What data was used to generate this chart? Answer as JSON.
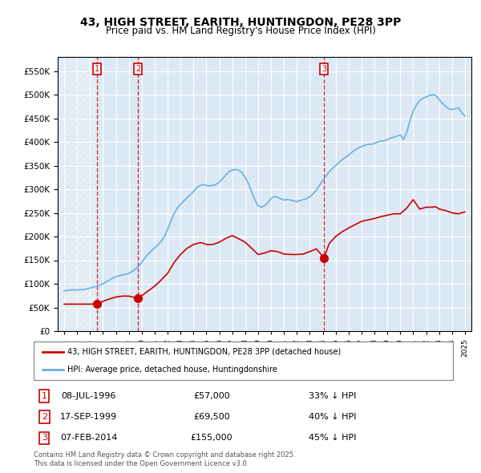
{
  "title": "43, HIGH STREET, EARITH, HUNTINGDON, PE28 3PP",
  "subtitle": "Price paid vs. HM Land Registry's House Price Index (HPI)",
  "legend_red": "43, HIGH STREET, EARITH, HUNTINGDON, PE28 3PP (detached house)",
  "legend_blue": "HPI: Average price, detached house, Huntingdonshire",
  "footnote": "Contains HM Land Registry data © Crown copyright and database right 2025.\nThis data is licensed under the Open Government Licence v3.0.",
  "sales": [
    {
      "num": 1,
      "date": "08-JUL-1996",
      "price": 57000,
      "year": 1996.52,
      "label": "33% ↓ HPI"
    },
    {
      "num": 2,
      "date": "17-SEP-1999",
      "price": 69500,
      "year": 1999.71,
      "label": "40% ↓ HPI"
    },
    {
      "num": 3,
      "date": "07-FEB-2014",
      "price": 155000,
      "year": 2014.1,
      "label": "45% ↓ HPI"
    }
  ],
  "ylim": [
    0,
    580000
  ],
  "yticks": [
    0,
    50000,
    100000,
    150000,
    200000,
    250000,
    300000,
    350000,
    400000,
    450000,
    500000,
    550000
  ],
  "ytick_labels": [
    "£0",
    "£50K",
    "£100K",
    "£150K",
    "£200K",
    "£250K",
    "£300K",
    "£350K",
    "£400K",
    "£450K",
    "£500K",
    "£550K"
  ],
  "xlim": [
    1993.5,
    2025.5
  ],
  "bg_color": "#dce9f5",
  "plot_bg": "#dce9f5",
  "grid_color": "#ffffff",
  "red_color": "#cc0000",
  "blue_color": "#6ab0e0",
  "hpi_data": {
    "years": [
      1994.0,
      1994.25,
      1994.5,
      1994.75,
      1995.0,
      1995.25,
      1995.5,
      1995.75,
      1996.0,
      1996.25,
      1996.5,
      1996.75,
      1997.0,
      1997.25,
      1997.5,
      1997.75,
      1998.0,
      1998.25,
      1998.5,
      1998.75,
      1999.0,
      1999.25,
      1999.5,
      1999.75,
      2000.0,
      2000.25,
      2000.5,
      2000.75,
      2001.0,
      2001.25,
      2001.5,
      2001.75,
      2002.0,
      2002.25,
      2002.5,
      2002.75,
      2003.0,
      2003.25,
      2003.5,
      2003.75,
      2004.0,
      2004.25,
      2004.5,
      2004.75,
      2005.0,
      2005.25,
      2005.5,
      2005.75,
      2006.0,
      2006.25,
      2006.5,
      2006.75,
      2007.0,
      2007.25,
      2007.5,
      2007.75,
      2008.0,
      2008.25,
      2008.5,
      2008.75,
      2009.0,
      2009.25,
      2009.5,
      2009.75,
      2010.0,
      2010.25,
      2010.5,
      2010.75,
      2011.0,
      2011.25,
      2011.5,
      2011.75,
      2012.0,
      2012.25,
      2012.5,
      2012.75,
      2013.0,
      2013.25,
      2013.5,
      2013.75,
      2014.0,
      2014.25,
      2014.5,
      2014.75,
      2015.0,
      2015.25,
      2015.5,
      2015.75,
      2016.0,
      2016.25,
      2016.5,
      2016.75,
      2017.0,
      2017.25,
      2017.5,
      2017.75,
      2018.0,
      2018.25,
      2018.5,
      2018.75,
      2019.0,
      2019.25,
      2019.5,
      2019.75,
      2020.0,
      2020.25,
      2020.5,
      2020.75,
      2021.0,
      2021.25,
      2021.5,
      2021.75,
      2022.0,
      2022.25,
      2022.5,
      2022.75,
      2023.0,
      2023.25,
      2023.5,
      2023.75,
      2024.0,
      2024.25,
      2024.5,
      2024.75,
      2025.0
    ],
    "values": [
      85000,
      86000,
      87000,
      87500,
      87000,
      87500,
      88000,
      89000,
      91000,
      93000,
      95000,
      97000,
      100000,
      104000,
      108000,
      112000,
      115000,
      117000,
      119000,
      120000,
      122000,
      126000,
      131000,
      137000,
      145000,
      155000,
      163000,
      170000,
      176000,
      182000,
      190000,
      200000,
      215000,
      232000,
      248000,
      260000,
      268000,
      275000,
      282000,
      288000,
      295000,
      303000,
      308000,
      310000,
      308000,
      307000,
      308000,
      310000,
      315000,
      322000,
      330000,
      337000,
      340000,
      342000,
      340000,
      335000,
      325000,
      312000,
      295000,
      278000,
      265000,
      262000,
      265000,
      272000,
      280000,
      285000,
      283000,
      280000,
      277000,
      278000,
      277000,
      275000,
      274000,
      276000,
      278000,
      280000,
      284000,
      290000,
      298000,
      308000,
      318000,
      328000,
      337000,
      344000,
      350000,
      357000,
      362000,
      367000,
      372000,
      378000,
      383000,
      387000,
      390000,
      393000,
      395000,
      395000,
      397000,
      400000,
      402000,
      402000,
      405000,
      408000,
      410000,
      412000,
      415000,
      405000,
      420000,
      445000,
      465000,
      478000,
      488000,
      492000,
      495000,
      498000,
      500000,
      498000,
      490000,
      482000,
      475000,
      470000,
      468000,
      470000,
      472000,
      462000,
      455000
    ]
  },
  "price_data": {
    "years": [
      1994.0,
      1994.5,
      1995.0,
      1995.5,
      1996.0,
      1996.52,
      1997.0,
      1997.5,
      1998.0,
      1998.5,
      1999.0,
      1999.71,
      2000.0,
      2000.5,
      2001.0,
      2001.5,
      2002.0,
      2002.5,
      2003.0,
      2003.5,
      2004.0,
      2004.5,
      2004.75,
      2005.0,
      2005.5,
      2006.0,
      2006.5,
      2007.0,
      2007.3,
      2008.0,
      2008.5,
      2009.0,
      2009.5,
      2010.0,
      2010.5,
      2011.0,
      2011.5,
      2012.0,
      2012.5,
      2013.0,
      2013.5,
      2014.1,
      2014.5,
      2015.0,
      2015.5,
      2016.0,
      2016.5,
      2017.0,
      2017.5,
      2018.0,
      2018.5,
      2019.0,
      2019.5,
      2020.0,
      2020.5,
      2021.0,
      2021.5,
      2022.0,
      2022.5,
      2022.75,
      2023.0,
      2023.5,
      2024.0,
      2024.5,
      2025.0
    ],
    "values": [
      57000,
      57000,
      57000,
      57000,
      57000,
      57000,
      63000,
      68000,
      72000,
      74000,
      74000,
      69500,
      75000,
      85000,
      95000,
      108000,
      122000,
      145000,
      162000,
      175000,
      183000,
      187000,
      186000,
      183000,
      183000,
      188000,
      196000,
      202000,
      198000,
      188000,
      175000,
      162000,
      165000,
      170000,
      168000,
      163000,
      162000,
      162000,
      163000,
      168000,
      174000,
      155000,
      185000,
      200000,
      210000,
      218000,
      225000,
      232000,
      235000,
      238000,
      242000,
      245000,
      248000,
      248000,
      260000,
      278000,
      258000,
      262000,
      262000,
      263000,
      258000,
      255000,
      250000,
      248000,
      252000
    ]
  }
}
